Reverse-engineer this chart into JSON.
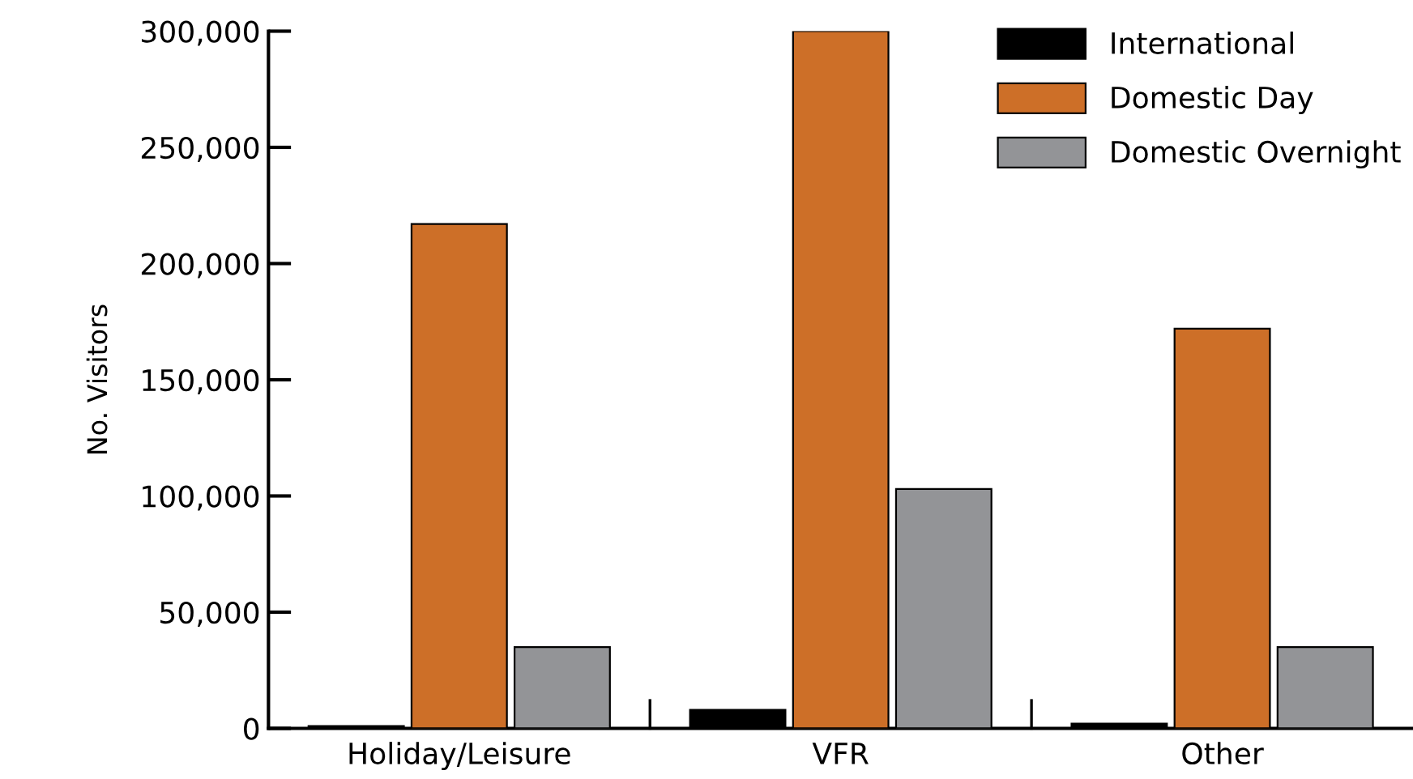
{
  "chart_data": {
    "type": "bar",
    "ylabel": "No. Visitors",
    "categories": [
      "Holiday/Leisure",
      "VFR",
      "Other"
    ],
    "series": [
      {
        "name": "International",
        "color": "#000000",
        "values": [
          1000,
          8000,
          2000
        ]
      },
      {
        "name": "Domestic Day",
        "color": "#cd6f28",
        "values": [
          217000,
          300000,
          172000
        ]
      },
      {
        "name": "Domestic Overnight",
        "color": "#939497",
        "values": [
          35000,
          103000,
          35000
        ]
      }
    ],
    "ylim": [
      0,
      300000
    ],
    "yticks": [
      {
        "value": 0,
        "label": "0"
      },
      {
        "value": 50000,
        "label": "50,000"
      },
      {
        "value": 100000,
        "label": "100,000"
      },
      {
        "value": 150000,
        "label": "150,000"
      },
      {
        "value": 200000,
        "label": "200,000"
      },
      {
        "value": 250000,
        "label": "250,000"
      },
      {
        "value": 300000,
        "label": "300,000"
      }
    ],
    "grid": false,
    "legend": "top right"
  }
}
